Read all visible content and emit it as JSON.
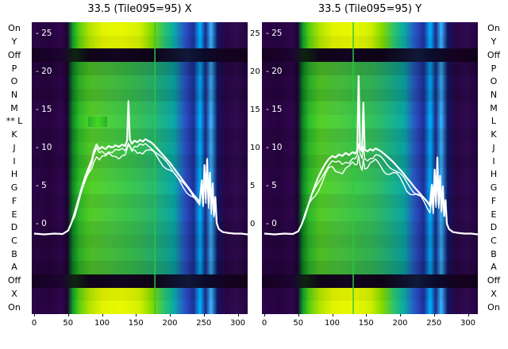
{
  "titles": {
    "left": "33.5 (Tile095=95) X",
    "right": "33.5 (Tile095=95) Y"
  },
  "axis": {
    "row_labels_left": [
      "On",
      "Y",
      "Off",
      "P",
      "O",
      "N",
      "M",
      "** L",
      "K",
      "J",
      "I",
      "H",
      "G",
      "F",
      "E",
      "D",
      "C",
      "B",
      "A",
      "Off",
      "X",
      "On"
    ],
    "row_labels_right": [
      "On",
      "Y",
      "Off",
      "P",
      "O",
      "N",
      "M",
      "L",
      "K",
      "J",
      "I",
      "H",
      "G",
      "F",
      "E",
      "D",
      "C",
      "B",
      "A",
      "Off",
      "X",
      "On"
    ],
    "x_ticks": [
      "0",
      "50",
      "100",
      "150",
      "200",
      "250",
      "300"
    ],
    "x_tick_values": [
      0,
      50,
      100,
      150,
      200,
      250,
      300
    ],
    "y_ticks_inner": [
      "- 25",
      "- 20",
      "- 15",
      "- 10",
      "- 5",
      "- 0"
    ],
    "y_ticks_gap": [
      "25",
      "20",
      "15",
      "10",
      "5",
      "0"
    ],
    "y_tick_values": [
      25,
      20,
      15,
      10,
      5,
      0
    ]
  },
  "rows": [
    {
      "label": "On",
      "style": "bright",
      "b": 1
    },
    {
      "label": "Y",
      "style": "bright",
      "b": 0.95
    },
    {
      "label": "Off",
      "style": "off",
      "b": 1
    },
    {
      "label": "P",
      "style": "mid",
      "b": 0.8
    },
    {
      "label": "O",
      "style": "mid",
      "b": 0.9
    },
    {
      "label": "N",
      "style": "mid",
      "b": 0.85
    },
    {
      "label": "M",
      "style": "mid",
      "b": 0.95
    },
    {
      "label": "L",
      "style": "mid",
      "b": 1
    },
    {
      "label": "K",
      "style": "mid",
      "b": 0.9
    },
    {
      "label": "J",
      "style": "mid",
      "b": 0.95
    },
    {
      "label": "I",
      "style": "mid",
      "b": 0.88
    },
    {
      "label": "H",
      "style": "mid",
      "b": 0.95
    },
    {
      "label": "G",
      "style": "mid",
      "b": 1
    },
    {
      "label": "F",
      "style": "mid",
      "b": 0.92
    },
    {
      "label": "E",
      "style": "mid",
      "b": 0.97
    },
    {
      "label": "D",
      "style": "mid",
      "b": 0.9
    },
    {
      "label": "C",
      "style": "mid",
      "b": 0.85
    },
    {
      "label": "B",
      "style": "mid",
      "b": 0.9
    },
    {
      "label": "A",
      "style": "mid",
      "b": 0.82
    },
    {
      "label": "Off",
      "style": "off",
      "b": 1
    },
    {
      "label": "X",
      "style": "bright",
      "b": 0.95
    },
    {
      "label": "On",
      "style": "bright",
      "b": 1
    }
  ],
  "colors": {
    "line": "#ffffff",
    "marker_line": "#2ec840",
    "label_text": "#000000",
    "inner_tick_text": "#ffffff",
    "background": "#ffffff"
  },
  "chart_data": [
    {
      "type": "heatmap+line",
      "title": "33.5 (Tile095=95) X",
      "x_range": [
        0,
        315
      ],
      "x_tick_values": [
        0,
        50,
        100,
        150,
        200,
        250,
        300
      ],
      "value_ticks": [
        25,
        20,
        15,
        10,
        5,
        0
      ],
      "row_categories": [
        "On",
        "Y",
        "Off",
        "P",
        "O",
        "N",
        "M",
        "L",
        "K",
        "J",
        "I",
        "H",
        "G",
        "F",
        "E",
        "D",
        "C",
        "B",
        "A",
        "Off",
        "X",
        "On"
      ],
      "marker_x": 178,
      "highlight_cell": {
        "row": 7,
        "x0": 80,
        "x1": 108
      },
      "line_scales": [
        1,
        0.94,
        0.88
      ],
      "line_points": [
        [
          0,
          -1.2
        ],
        [
          15,
          -1.3
        ],
        [
          30,
          -1.2
        ],
        [
          42,
          -1.25
        ],
        [
          50,
          -0.8
        ],
        [
          55,
          0.2
        ],
        [
          60,
          1.6
        ],
        [
          65,
          3.2
        ],
        [
          70,
          4.8
        ],
        [
          75,
          6.2
        ],
        [
          80,
          7.4
        ],
        [
          85,
          8.5
        ],
        [
          88,
          9.6
        ],
        [
          92,
          10.5
        ],
        [
          96,
          9.9
        ],
        [
          100,
          10.2
        ],
        [
          105,
          9.9
        ],
        [
          110,
          10.3
        ],
        [
          115,
          10.1
        ],
        [
          120,
          10.4
        ],
        [
          125,
          10.2
        ],
        [
          130,
          10.5
        ],
        [
          134,
          10.3
        ],
        [
          137,
          11.0
        ],
        [
          139,
          16.2
        ],
        [
          141,
          11.2
        ],
        [
          144,
          10.6
        ],
        [
          148,
          11.0
        ],
        [
          152,
          10.8
        ],
        [
          156,
          11.1
        ],
        [
          160,
          10.9
        ],
        [
          164,
          11.2
        ],
        [
          168,
          11.0
        ],
        [
          172,
          10.8
        ],
        [
          176,
          10.5
        ],
        [
          180,
          10.1
        ],
        [
          185,
          9.6
        ],
        [
          190,
          9.1
        ],
        [
          195,
          8.6
        ],
        [
          200,
          8.1
        ],
        [
          205,
          7.5
        ],
        [
          210,
          6.9
        ],
        [
          215,
          6.3
        ],
        [
          220,
          5.7
        ],
        [
          225,
          5.1
        ],
        [
          230,
          4.5
        ],
        [
          235,
          3.9
        ],
        [
          240,
          3.4
        ],
        [
          244,
          2.9
        ],
        [
          247,
          5.8
        ],
        [
          249,
          2.6
        ],
        [
          251,
          7.8
        ],
        [
          253,
          3.4
        ],
        [
          255,
          8.6
        ],
        [
          257,
          2.8
        ],
        [
          259,
          6.8
        ],
        [
          261,
          1.9
        ],
        [
          263,
          5.4
        ],
        [
          265,
          1.2
        ],
        [
          267,
          3.6
        ],
        [
          269,
          0.2
        ],
        [
          272,
          -0.6
        ],
        [
          278,
          -1.0
        ],
        [
          285,
          -1.1
        ],
        [
          295,
          -1.2
        ],
        [
          305,
          -1.2
        ],
        [
          315,
          -1.3
        ]
      ]
    },
    {
      "type": "heatmap+line",
      "title": "33.5 (Tile095=95) Y",
      "x_range": [
        0,
        315
      ],
      "x_tick_values": [
        0,
        50,
        100,
        150,
        200,
        250,
        300
      ],
      "value_ticks": [
        25,
        20,
        15,
        10,
        5,
        0
      ],
      "row_categories": [
        "On",
        "Y",
        "Off",
        "P",
        "O",
        "N",
        "M",
        "L",
        "K",
        "J",
        "I",
        "H",
        "G",
        "F",
        "E",
        "D",
        "C",
        "B",
        "A",
        "Off",
        "X",
        "On"
      ],
      "marker_x": 131,
      "highlight_cell": null,
      "line_scales": [
        1,
        0.9,
        0.8
      ],
      "line_points": [
        [
          0,
          -1.2
        ],
        [
          15,
          -1.3
        ],
        [
          30,
          -1.2
        ],
        [
          42,
          -1.25
        ],
        [
          50,
          -0.9
        ],
        [
          55,
          0.0
        ],
        [
          60,
          1.2
        ],
        [
          65,
          2.6
        ],
        [
          70,
          4.0
        ],
        [
          75,
          5.2
        ],
        [
          80,
          6.3
        ],
        [
          85,
          7.2
        ],
        [
          90,
          8.0
        ],
        [
          95,
          8.6
        ],
        [
          100,
          9.0
        ],
        [
          105,
          8.8
        ],
        [
          110,
          9.2
        ],
        [
          115,
          9.0
        ],
        [
          120,
          9.4
        ],
        [
          125,
          9.1
        ],
        [
          130,
          9.5
        ],
        [
          134,
          9.3
        ],
        [
          137,
          9.8
        ],
        [
          139,
          19.5
        ],
        [
          141,
          10.2
        ],
        [
          144,
          9.6
        ],
        [
          146,
          16.0
        ],
        [
          148,
          9.8
        ],
        [
          152,
          9.6
        ],
        [
          156,
          9.9
        ],
        [
          160,
          9.7
        ],
        [
          164,
          10.0
        ],
        [
          168,
          9.8
        ],
        [
          172,
          9.6
        ],
        [
          176,
          9.3
        ],
        [
          180,
          9.0
        ],
        [
          185,
          8.6
        ],
        [
          190,
          8.2
        ],
        [
          195,
          7.7
        ],
        [
          200,
          7.2
        ],
        [
          205,
          6.7
        ],
        [
          210,
          6.1
        ],
        [
          215,
          5.6
        ],
        [
          220,
          5.0
        ],
        [
          225,
          4.5
        ],
        [
          230,
          4.0
        ],
        [
          235,
          3.5
        ],
        [
          240,
          3.0
        ],
        [
          244,
          2.6
        ],
        [
          247,
          5.2
        ],
        [
          249,
          2.4
        ],
        [
          251,
          7.2
        ],
        [
          253,
          3.0
        ],
        [
          255,
          8.8
        ],
        [
          257,
          2.6
        ],
        [
          259,
          6.4
        ],
        [
          261,
          1.8
        ],
        [
          263,
          5.0
        ],
        [
          265,
          1.1
        ],
        [
          267,
          3.2
        ],
        [
          269,
          0.1
        ],
        [
          272,
          -0.6
        ],
        [
          278,
          -1.0
        ],
        [
          285,
          -1.1
        ],
        [
          295,
          -1.2
        ],
        [
          305,
          -1.2
        ],
        [
          315,
          -1.3
        ]
      ]
    }
  ]
}
